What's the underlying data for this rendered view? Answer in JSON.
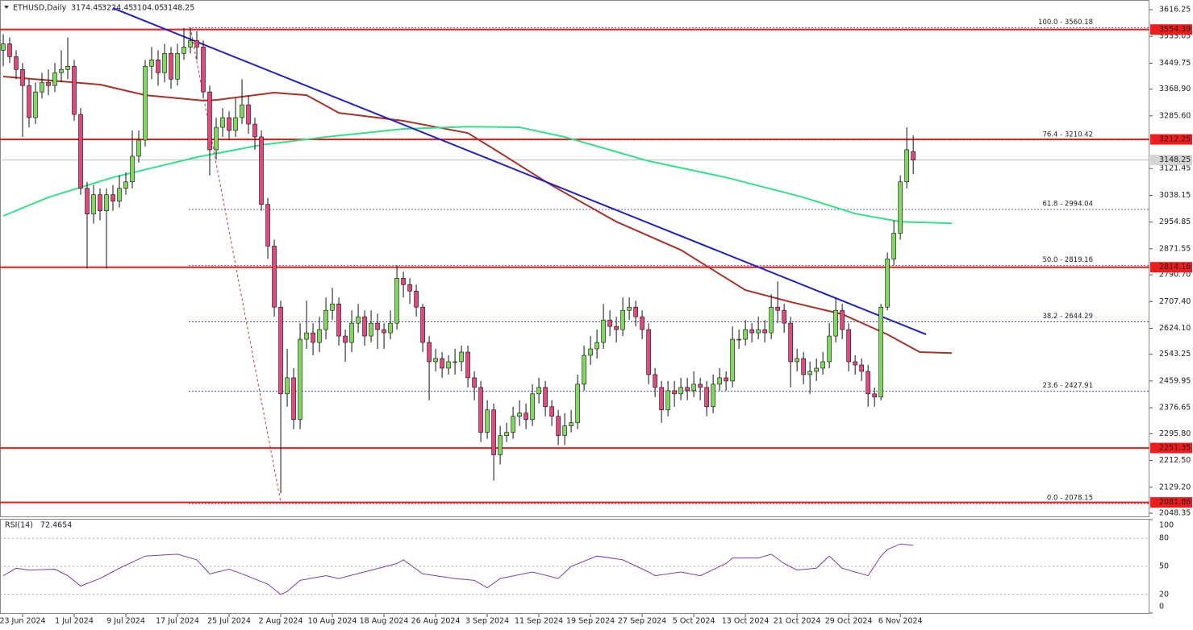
{
  "chart_data": {
    "type": "candlestick",
    "title": "ETHUSD,Daily",
    "up_color": "#7fd95a",
    "down_color": "#e8457f",
    "open": [
      3490,
      3510,
      3470,
      3430,
      3380,
      3280,
      3360,
      3390,
      3380,
      3420,
      3430,
      3440,
      3290,
      3060,
      2980,
      3040,
      2990,
      3040,
      3020,
      3060,
      3080,
      3160,
      3210,
      3440,
      3460,
      3420,
      3480,
      3400,
      3480,
      3500,
      3520,
      3500,
      3360,
      3180,
      3250,
      3280,
      3240,
      3280,
      3320,
      3260,
      3220,
      3010,
      2880,
      2690,
      2420,
      2470,
      2340,
      2590,
      2610,
      2580,
      2620,
      2680,
      2700,
      2600,
      2580,
      2640,
      2660,
      2600,
      2640,
      2620,
      2610,
      2640,
      2780,
      2760,
      2740,
      2690,
      2580,
      2520,
      2530,
      2500,
      2520,
      2520,
      2550,
      2470,
      2440,
      2300,
      2370,
      2230,
      2290,
      2300,
      2350,
      2360,
      2340,
      2420,
      2440,
      2380,
      2350,
      2290,
      2320,
      2330,
      2450,
      2540,
      2560,
      2580,
      2650,
      2630,
      2620,
      2680,
      2690,
      2660,
      2620,
      2480,
      2440,
      2370,
      2430,
      2420,
      2440,
      2430,
      2450,
      2440,
      2380,
      2450,
      2470,
      2460,
      2590,
      2590,
      2620,
      2610,
      2620,
      2610,
      2690,
      2680,
      2640,
      2520,
      2530,
      2480,
      2490,
      2500,
      2520,
      2600,
      2680,
      2620,
      2520,
      2510,
      2490,
      2420,
      2410,
      2690,
      2840,
      2920,
      3080,
      3174.45
    ],
    "high": [
      3540,
      3530,
      3490,
      3450,
      3400,
      3390,
      3420,
      3430,
      3450,
      3490,
      3530,
      3460,
      3310,
      3080,
      3070,
      3060,
      3060,
      3070,
      3100,
      3110,
      3240,
      3240,
      3460,
      3500,
      3490,
      3510,
      3500,
      3510,
      3560,
      3560,
      3550,
      3520,
      3380,
      3280,
      3310,
      3300,
      3340,
      3400,
      3350,
      3280,
      3240,
      3030,
      2900,
      2710,
      2560,
      2500,
      2640,
      2710,
      2640,
      2660,
      2720,
      2750,
      2720,
      2620,
      2680,
      2700,
      2680,
      2680,
      2670,
      2640,
      2680,
      2820,
      2800,
      2780,
      2760,
      2700,
      2600,
      2560,
      2550,
      2540,
      2560,
      2570,
      2570,
      2490,
      2460,
      2400,
      2390,
      2320,
      2330,
      2380,
      2400,
      2390,
      2450,
      2470,
      2460,
      2400,
      2370,
      2360,
      2370,
      2480,
      2570,
      2600,
      2620,
      2700,
      2680,
      2660,
      2720,
      2720,
      2710,
      2680,
      2640,
      2500,
      2460,
      2460,
      2460,
      2470,
      2470,
      2490,
      2470,
      2460,
      2480,
      2500,
      2490,
      2630,
      2620,
      2650,
      2640,
      2660,
      2650,
      2730,
      2770,
      2700,
      2660,
      2560,
      2550,
      2520,
      2530,
      2550,
      2640,
      2720,
      2700,
      2640,
      2540,
      2530,
      2510,
      2440,
      2700,
      2860,
      2960,
      3100,
      3250,
      3224.45
    ],
    "low": [
      3440,
      3450,
      3400,
      3220,
      3250,
      3260,
      3340,
      3350,
      3360,
      3390,
      3400,
      3270,
      3040,
      2810,
      2950,
      2960,
      2810,
      2990,
      3000,
      3040,
      3060,
      3140,
      3190,
      3400,
      3380,
      3390,
      3370,
      3380,
      3460,
      3480,
      3460,
      3340,
      3100,
      3150,
      3220,
      3210,
      3220,
      3260,
      3230,
      3180,
      2990,
      2840,
      2660,
      2110,
      2380,
      2310,
      2310,
      2560,
      2540,
      2550,
      2590,
      2650,
      2570,
      2520,
      2550,
      2610,
      2570,
      2580,
      2560,
      2560,
      2590,
      2620,
      2720,
      2700,
      2660,
      2550,
      2400,
      2490,
      2470,
      2480,
      2480,
      2490,
      2440,
      2400,
      2270,
      2280,
      2150,
      2200,
      2270,
      2280,
      2320,
      2310,
      2320,
      2390,
      2350,
      2320,
      2260,
      2260,
      2300,
      2310,
      2430,
      2510,
      2530,
      2560,
      2600,
      2580,
      2600,
      2650,
      2630,
      2590,
      2450,
      2410,
      2330,
      2350,
      2380,
      2400,
      2400,
      2410,
      2400,
      2350,
      2360,
      2430,
      2430,
      2440,
      2560,
      2570,
      2580,
      2590,
      2580,
      2590,
      2640,
      2610,
      2440,
      2490,
      2450,
      2420,
      2460,
      2480,
      2500,
      2580,
      2590,
      2490,
      2480,
      2460,
      2380,
      2380,
      2400,
      2680,
      2820,
      2900,
      3060,
      3104.05
    ],
    "close": [
      3510,
      3470,
      3430,
      3380,
      3280,
      3360,
      3390,
      3380,
      3420,
      3430,
      3440,
      3290,
      3060,
      2980,
      3040,
      2990,
      3040,
      3020,
      3060,
      3080,
      3160,
      3210,
      3440,
      3460,
      3420,
      3480,
      3400,
      3480,
      3500,
      3520,
      3500,
      3360,
      3180,
      3250,
      3280,
      3240,
      3280,
      3320,
      3260,
      3220,
      3010,
      2880,
      2690,
      2420,
      2470,
      2340,
      2590,
      2610,
      2580,
      2620,
      2680,
      2700,
      2600,
      2580,
      2640,
      2660,
      2600,
      2640,
      2620,
      2610,
      2640,
      2780,
      2760,
      2740,
      2690,
      2580,
      2520,
      2530,
      2500,
      2520,
      2520,
      2550,
      2470,
      2440,
      2300,
      2370,
      2230,
      2290,
      2300,
      2350,
      2360,
      2340,
      2420,
      2440,
      2380,
      2350,
      2290,
      2320,
      2330,
      2450,
      2540,
      2560,
      2580,
      2650,
      2630,
      2620,
      2680,
      2690,
      2660,
      2620,
      2480,
      2440,
      2370,
      2430,
      2420,
      2440,
      2430,
      2450,
      2440,
      2380,
      2450,
      2470,
      2460,
      2590,
      2590,
      2620,
      2610,
      2620,
      2610,
      2690,
      2680,
      2640,
      2520,
      2530,
      2480,
      2490,
      2500,
      2520,
      2600,
      2680,
      2620,
      2520,
      2510,
      2490,
      2420,
      2410,
      2690,
      2840,
      2920,
      3080,
      3180,
      3148.25
    ],
    "xlim": [
      -0.5,
      177.6
    ],
    "ylim": [
      2040.8,
      3646.4
    ],
    "yticks": [
      {
        "value": 3616.25,
        "label": "3616.25"
      },
      {
        "value": 3533.05,
        "label": "3533.05"
      },
      {
        "value": 3449.75,
        "label": "3449.75"
      },
      {
        "value": 3368.9,
        "label": "3368.90"
      },
      {
        "value": 3285.6,
        "label": "3285.60"
      },
      {
        "value": 3121.45,
        "label": "3121.45"
      },
      {
        "value": 3038.15,
        "label": "3038.15"
      },
      {
        "value": 2954.85,
        "label": "2954.85"
      },
      {
        "value": 2871.55,
        "label": "2871.55"
      },
      {
        "value": 2790.7,
        "label": "2790.70"
      },
      {
        "value": 2707.4,
        "label": "2707.40"
      },
      {
        "value": 2624.1,
        "label": "2624.10"
      },
      {
        "value": 2543.25,
        "label": "2543.25"
      },
      {
        "value": 2459.95,
        "label": "2459.95"
      },
      {
        "value": 2376.65,
        "label": "2376.65"
      },
      {
        "value": 2295.8,
        "label": "2295.80"
      },
      {
        "value": 2212.5,
        "label": "2212.50"
      },
      {
        "value": 2129.2,
        "label": "2129.20"
      },
      {
        "value": 2048.35,
        "label": "2048.35"
      }
    ],
    "xticks": [
      {
        "value": 3,
        "label": "23 Jun 2024"
      },
      {
        "value": 11,
        "label": "1 Jul 2024"
      },
      {
        "value": 19,
        "label": "9 Jul 2024"
      },
      {
        "value": 27,
        "label": "17 Jul 2024"
      },
      {
        "value": 35,
        "label": "25 Jul 2024"
      },
      {
        "value": 43,
        "label": "2 Aug 2024"
      },
      {
        "value": 51,
        "label": "10 Aug 2024"
      },
      {
        "value": 59,
        "label": "18 Aug 2024"
      },
      {
        "value": 67,
        "label": "26 Aug 2024"
      },
      {
        "value": 75,
        "label": "3 Sep 2024"
      },
      {
        "value": 83,
        "label": "11 Sep 2024"
      },
      {
        "value": 91,
        "label": "19 Sep 2024"
      },
      {
        "value": 99,
        "label": "27 Sep 2024"
      },
      {
        "value": 107,
        "label": "5 Oct 2024"
      },
      {
        "value": 115,
        "label": "13 Oct 2024"
      },
      {
        "value": 123,
        "label": "21 Oct 2024"
      },
      {
        "value": 131,
        "label": "29 Oct 2024"
      },
      {
        "value": 139,
        "label": "6 Nov 2024"
      }
    ],
    "levels": [
      3554.39,
      3212.25,
      2814.16,
      2251.35,
      2081.86
    ],
    "level_color": "#ee1c1c",
    "fib_levels": [
      {
        "value": 3560.18,
        "label": "100.0 - 3560.18"
      },
      {
        "value": 3210.42,
        "label": "76.4 - 3210.42"
      },
      {
        "value": 2994.04,
        "label": "61.8 - 2994.04"
      },
      {
        "value": 2819.16,
        "label": "50.0 - 2819.16"
      },
      {
        "value": 2644.29,
        "label": "38.2 - 2644.29"
      },
      {
        "value": 2427.91,
        "label": "23.6 - 2427.91"
      },
      {
        "value": 2078.15,
        "label": "0.0 - 2078.15"
      }
    ],
    "fib_color": "#2828a8",
    "lines": [
      {
        "color": "#a8322a",
        "x": [
          0,
          15,
          22,
          31,
          33,
          42,
          47,
          52,
          62,
          72,
          77,
          85,
          95,
          105,
          115,
          122,
          130,
          137,
          142,
          147
        ],
        "values": [
          3408,
          3383,
          3350,
          3333,
          3335,
          3358,
          3350,
          3295,
          3270,
          3232,
          3170,
          3069,
          2956,
          2868,
          2743,
          2706,
          2668,
          2605,
          2550,
          2547
        ]
      },
      {
        "color": "#35e08a",
        "x": [
          0,
          7,
          17,
          30,
          40,
          50,
          62,
          72,
          80,
          87,
          100,
          112,
          124,
          132,
          139,
          147
        ],
        "values": [
          2974,
          3032,
          3094,
          3157,
          3195,
          3220,
          3245,
          3252,
          3250,
          3220,
          3145,
          3094,
          3032,
          2981,
          2956,
          2951
        ]
      },
      {
        "color": "#2020c8",
        "x": [
          17,
          143
        ],
        "values": [
          3621,
          2605
        ]
      },
      {
        "color": "#c0392b",
        "dashed": true,
        "x": [
          29,
          43
        ],
        "values": [
          3560,
          2083
        ]
      }
    ],
    "rsi": {
      "title": "RSI(14)",
      "color": "#7d3fa6",
      "ylim": [
        0,
        100
      ],
      "yticks": [
        0,
        20,
        50,
        80,
        100
      ],
      "x": [
        0,
        2,
        4,
        8,
        10,
        12,
        15,
        18,
        22,
        27,
        30,
        32,
        35,
        37,
        41,
        43,
        44,
        46,
        50,
        52,
        61,
        62,
        65,
        70,
        73,
        75,
        77,
        82,
        86,
        88,
        92,
        96,
        100,
        101,
        105,
        108,
        112,
        113,
        117,
        119,
        121,
        123,
        126,
        128,
        130,
        134,
        136,
        137,
        139,
        141
      ],
      "values": [
        40,
        48,
        46,
        47,
        40,
        29,
        37,
        48,
        61,
        63,
        57,
        42,
        47,
        42,
        31,
        20,
        23,
        35,
        40,
        37,
        53,
        57,
        42,
        37,
        35,
        27,
        37,
        44,
        37,
        50,
        61,
        57,
        44,
        40,
        44,
        40,
        53,
        59,
        59,
        63,
        53,
        46,
        48,
        61,
        48,
        40,
        61,
        68,
        74,
        72.4654
      ]
    }
  }
}
